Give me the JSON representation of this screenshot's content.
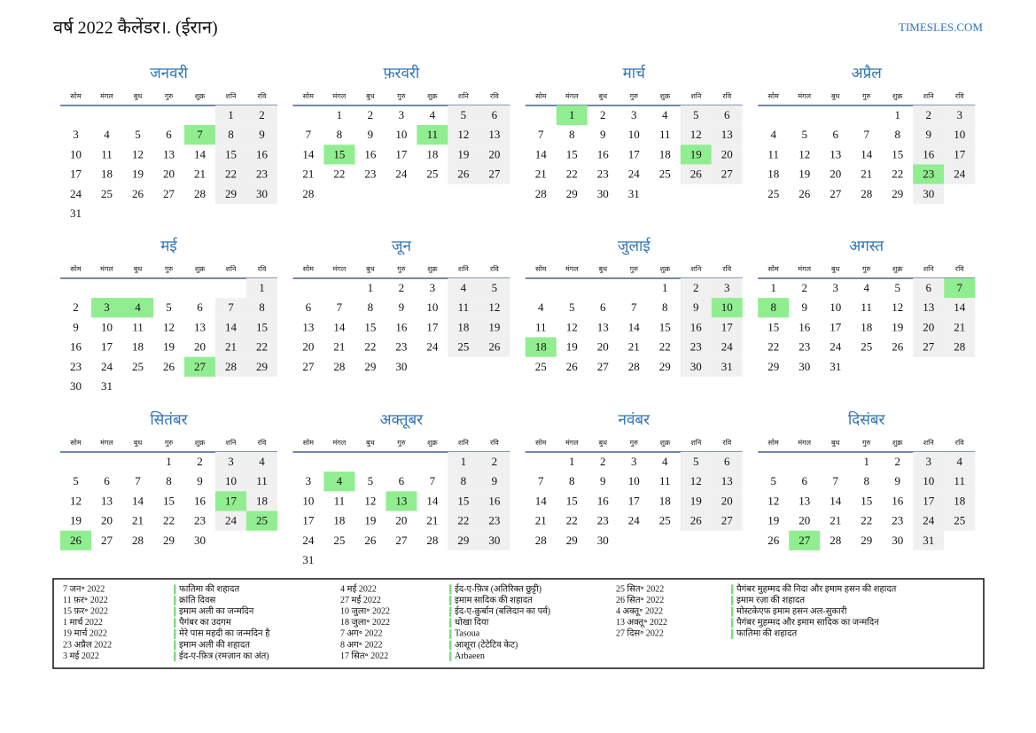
{
  "header": {
    "title": "वर्ष 2022 कैलेंडर।. (ईरान)",
    "site": "TIMESLES.COM"
  },
  "weekdays": [
    "सोम",
    "मंगल",
    "बुध",
    "गुरु",
    "शुक्र",
    "शनि",
    "रवि"
  ],
  "months": [
    {
      "name": "जनवरी",
      "weeks": [
        [
          null,
          null,
          null,
          null,
          null,
          1,
          2
        ],
        [
          3,
          4,
          5,
          6,
          7,
          8,
          9
        ],
        [
          10,
          11,
          12,
          13,
          14,
          15,
          16
        ],
        [
          17,
          18,
          19,
          20,
          21,
          22,
          23
        ],
        [
          24,
          25,
          26,
          27,
          28,
          29,
          30
        ],
        [
          31
        ]
      ],
      "holidays": [
        7
      ]
    },
    {
      "name": "फ़रवरी",
      "weeks": [
        [
          null,
          1,
          2,
          3,
          4,
          5,
          6
        ],
        [
          7,
          8,
          9,
          10,
          11,
          12,
          13
        ],
        [
          14,
          15,
          16,
          17,
          18,
          19,
          20
        ],
        [
          21,
          22,
          23,
          24,
          25,
          26,
          27
        ],
        [
          28
        ]
      ],
      "holidays": [
        11,
        15
      ]
    },
    {
      "name": "मार्च",
      "weeks": [
        [
          null,
          1,
          2,
          3,
          4,
          5,
          6
        ],
        [
          7,
          8,
          9,
          10,
          11,
          12,
          13
        ],
        [
          14,
          15,
          16,
          17,
          18,
          19,
          20
        ],
        [
          21,
          22,
          23,
          24,
          25,
          26,
          27
        ],
        [
          28,
          29,
          30,
          31
        ]
      ],
      "holidays": [
        1,
        19
      ]
    },
    {
      "name": "अप्रैल",
      "weeks": [
        [
          null,
          null,
          null,
          null,
          1,
          2,
          3
        ],
        [
          4,
          5,
          6,
          7,
          8,
          9,
          10
        ],
        [
          11,
          12,
          13,
          14,
          15,
          16,
          17
        ],
        [
          18,
          19,
          20,
          21,
          22,
          23,
          24
        ],
        [
          25,
          26,
          27,
          28,
          29,
          30
        ]
      ],
      "holidays": [
        23
      ]
    },
    {
      "name": "मई",
      "weeks": [
        [
          null,
          null,
          null,
          null,
          null,
          null,
          1
        ],
        [
          2,
          3,
          4,
          5,
          6,
          7,
          8
        ],
        [
          9,
          10,
          11,
          12,
          13,
          14,
          15
        ],
        [
          16,
          17,
          18,
          19,
          20,
          21,
          22
        ],
        [
          23,
          24,
          25,
          26,
          27,
          28,
          29
        ],
        [
          30,
          31
        ]
      ],
      "holidays": [
        3,
        4,
        27
      ]
    },
    {
      "name": "जून",
      "weeks": [
        [
          null,
          null,
          1,
          2,
          3,
          4,
          5
        ],
        [
          6,
          7,
          8,
          9,
          10,
          11,
          12
        ],
        [
          13,
          14,
          15,
          16,
          17,
          18,
          19
        ],
        [
          20,
          21,
          22,
          23,
          24,
          25,
          26
        ],
        [
          27,
          28,
          29,
          30
        ]
      ],
      "holidays": []
    },
    {
      "name": "जुलाई",
      "weeks": [
        [
          null,
          null,
          null,
          null,
          1,
          2,
          3
        ],
        [
          4,
          5,
          6,
          7,
          8,
          9,
          10
        ],
        [
          11,
          12,
          13,
          14,
          15,
          16,
          17
        ],
        [
          18,
          19,
          20,
          21,
          22,
          23,
          24
        ],
        [
          25,
          26,
          27,
          28,
          29,
          30,
          31
        ]
      ],
      "holidays": [
        10,
        18
      ]
    },
    {
      "name": "अगस्त",
      "weeks": [
        [
          1,
          2,
          3,
          4,
          5,
          6,
          7
        ],
        [
          8,
          9,
          10,
          11,
          12,
          13,
          14
        ],
        [
          15,
          16,
          17,
          18,
          19,
          20,
          21
        ],
        [
          22,
          23,
          24,
          25,
          26,
          27,
          28
        ],
        [
          29,
          30,
          31
        ]
      ],
      "holidays": [
        7,
        8
      ]
    },
    {
      "name": "सितंबर",
      "weeks": [
        [
          null,
          null,
          null,
          1,
          2,
          3,
          4
        ],
        [
          5,
          6,
          7,
          8,
          9,
          10,
          11
        ],
        [
          12,
          13,
          14,
          15,
          16,
          17,
          18
        ],
        [
          19,
          20,
          21,
          22,
          23,
          24,
          25
        ],
        [
          26,
          27,
          28,
          29,
          30
        ]
      ],
      "holidays": [
        17,
        25,
        26
      ]
    },
    {
      "name": "अक्तूबर",
      "weeks": [
        [
          null,
          null,
          null,
          null,
          null,
          1,
          2
        ],
        [
          3,
          4,
          5,
          6,
          7,
          8,
          9
        ],
        [
          10,
          11,
          12,
          13,
          14,
          15,
          16
        ],
        [
          17,
          18,
          19,
          20,
          21,
          22,
          23
        ],
        [
          24,
          25,
          26,
          27,
          28,
          29,
          30
        ],
        [
          31
        ]
      ],
      "holidays": [
        4,
        13
      ]
    },
    {
      "name": "नवंबर",
      "weeks": [
        [
          null,
          1,
          2,
          3,
          4,
          5,
          6
        ],
        [
          7,
          8,
          9,
          10,
          11,
          12,
          13
        ],
        [
          14,
          15,
          16,
          17,
          18,
          19,
          20
        ],
        [
          21,
          22,
          23,
          24,
          25,
          26,
          27
        ],
        [
          28,
          29,
          30
        ]
      ],
      "holidays": []
    },
    {
      "name": "दिसंबर",
      "weeks": [
        [
          null,
          null,
          null,
          1,
          2,
          3,
          4
        ],
        [
          5,
          6,
          7,
          8,
          9,
          10,
          11
        ],
        [
          12,
          13,
          14,
          15,
          16,
          17,
          18
        ],
        [
          19,
          20,
          21,
          22,
          23,
          24,
          25
        ],
        [
          26,
          27,
          28,
          29,
          30,
          31
        ]
      ],
      "holidays": [
        27
      ]
    }
  ],
  "holiday_list": [
    [
      {
        "date": "7 जन॰ 2022",
        "name": "फातिमा की शहादत"
      },
      {
        "date": "11 फ़र॰ 2022",
        "name": "क्रांति दिवस"
      },
      {
        "date": "15 फ़र॰ 2022",
        "name": "इमाम अली का जन्मदिन"
      },
      {
        "date": "1 मार्च 2022",
        "name": "पैगंबर का उदगम"
      },
      {
        "date": "19 मार्च 2022",
        "name": "मेरे पास महदी का जन्मदिन है"
      },
      {
        "date": "23 अप्रैल 2022",
        "name": "इमाम अली की शहादत"
      },
      {
        "date": "3 मई 2022",
        "name": "ईद-ए-फ़ित्र (रमज़ान का अंत)"
      }
    ],
    [
      {
        "date": "4 मई 2022",
        "name": "ईद-ए-फ़ित्र (अतिरिक्त छुट्टी)"
      },
      {
        "date": "27 मई 2022",
        "name": "इमाम सादिक की शहादत"
      },
      {
        "date": "10 जुला॰ 2022",
        "name": "ईद-ए-क़ुर्बान (बलिदान का पर्व)"
      },
      {
        "date": "18 जुला॰ 2022",
        "name": "धोखा दिया"
      },
      {
        "date": "7 अग॰ 2022",
        "name": "Tasoua"
      },
      {
        "date": "8 अग॰ 2022",
        "name": "आशूरा (टेटेटिव केट)"
      },
      {
        "date": "17 सित॰ 2022",
        "name": "Arbaeen"
      }
    ],
    [
      {
        "date": "25 सित॰ 2022",
        "name": "पैगंबर मुहम्मद की निदा और इमाम हसन की शहादत"
      },
      {
        "date": "26 सित॰ 2022",
        "name": "इमाम रज़ा की शहादत"
      },
      {
        "date": "4 अक्तू॰ 2022",
        "name": "मोस्टकेएफ इमाम हसन अल-सुकारी"
      },
      {
        "date": "13 अक्तू॰ 2022",
        "name": "पैगंबर मुहम्मद और इमाम सादिक का जन्मदिन"
      },
      {
        "date": "27 दिस॰ 2022",
        "name": "फातिमा की शहादत"
      }
    ]
  ]
}
